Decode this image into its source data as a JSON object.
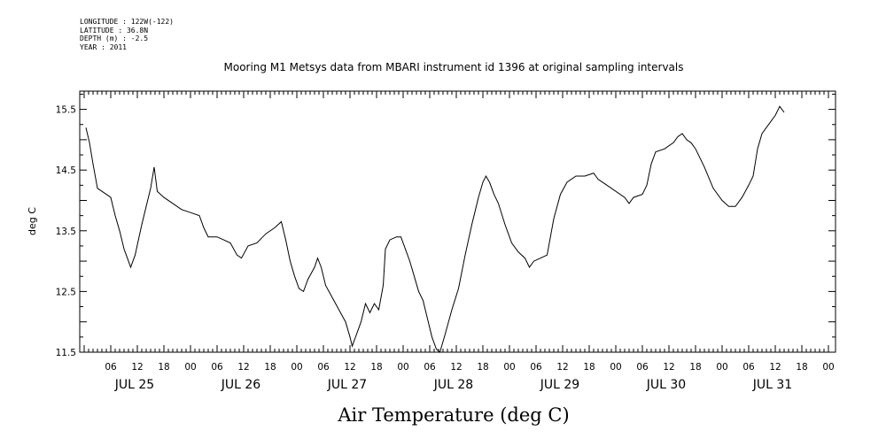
{
  "header": {
    "longitude": "LONGITUDE : 122W(-122)",
    "latitude": "LATITUDE : 36.8N",
    "depth": "DEPTH (m) : -2.5",
    "year": "YEAR : 2011"
  },
  "chart_data": {
    "type": "line",
    "title": "Mooring M1 Metsys data from MBARI instrument id 1396 at original sampling intervals",
    "xlabel": "Air Temperature (deg C)",
    "ylabel": "deg C",
    "ylim": [
      11.5,
      15.8
    ],
    "yticks": [
      "11.5",
      "12.5",
      "13.5",
      "14.5",
      "15.5"
    ],
    "xlim_hours": [
      0,
      168
    ],
    "hour_ticks": [
      "06",
      "12",
      "18",
      "00",
      "06",
      "12",
      "18",
      "00",
      "06",
      "12",
      "18",
      "00",
      "06",
      "12",
      "18",
      "00",
      "06",
      "12",
      "18",
      "00",
      "06",
      "12",
      "18",
      "00",
      "06",
      "12",
      "18",
      "00"
    ],
    "date_labels": [
      "JUL 25",
      "JUL 26",
      "JUL 27",
      "JUL 28",
      "JUL 29",
      "JUL 30",
      "JUL 31"
    ],
    "grid": false,
    "series": [
      {
        "color": "#000000",
        "points": [
          [
            0.4,
            15.2
          ],
          [
            1.2,
            14.95
          ],
          [
            2,
            14.6
          ],
          [
            3,
            14.2
          ],
          [
            4,
            14.15
          ],
          [
            5,
            14.1
          ],
          [
            6,
            14.05
          ],
          [
            7,
            13.75
          ],
          [
            8,
            13.5
          ],
          [
            9,
            13.2
          ],
          [
            10,
            13.0
          ],
          [
            10.5,
            12.9
          ],
          [
            11.5,
            13.1
          ],
          [
            13,
            13.6
          ],
          [
            14,
            13.9
          ],
          [
            15,
            14.2
          ],
          [
            15.8,
            14.55
          ],
          [
            16.5,
            14.15
          ],
          [
            18,
            14.05
          ],
          [
            20,
            13.95
          ],
          [
            22,
            13.85
          ],
          [
            24,
            13.8
          ],
          [
            26,
            13.75
          ],
          [
            27,
            13.55
          ],
          [
            28,
            13.4
          ],
          [
            30,
            13.4
          ],
          [
            31.5,
            13.35
          ],
          [
            33,
            13.3
          ],
          [
            34.5,
            13.1
          ],
          [
            35.5,
            13.05
          ],
          [
            37,
            13.25
          ],
          [
            39,
            13.3
          ],
          [
            41,
            13.45
          ],
          [
            43,
            13.55
          ],
          [
            44.5,
            13.65
          ],
          [
            45.5,
            13.35
          ],
          [
            46.5,
            13.0
          ],
          [
            47.5,
            12.75
          ],
          [
            48.5,
            12.55
          ],
          [
            49.5,
            12.5
          ],
          [
            50.5,
            12.7
          ],
          [
            52,
            12.9
          ],
          [
            52.7,
            13.05
          ],
          [
            53.5,
            12.9
          ],
          [
            54.5,
            12.6
          ],
          [
            56,
            12.4
          ],
          [
            57.5,
            12.2
          ],
          [
            59,
            12.0
          ],
          [
            60,
            11.75
          ],
          [
            60.5,
            11.6
          ],
          [
            61.5,
            11.8
          ],
          [
            62.5,
            12.0
          ],
          [
            63.5,
            12.3
          ],
          [
            64.5,
            12.15
          ],
          [
            65.5,
            12.3
          ],
          [
            66.5,
            12.2
          ],
          [
            67.5,
            12.6
          ],
          [
            68,
            13.2
          ],
          [
            69,
            13.35
          ],
          [
            70.5,
            13.4
          ],
          [
            71.5,
            13.4
          ],
          [
            72.5,
            13.2
          ],
          [
            73.5,
            13.0
          ],
          [
            74.5,
            12.75
          ],
          [
            75.5,
            12.5
          ],
          [
            76.5,
            12.35
          ],
          [
            77.5,
            12.05
          ],
          [
            78.5,
            11.75
          ],
          [
            79.5,
            11.55
          ],
          [
            80.3,
            11.5
          ],
          [
            81.5,
            11.8
          ],
          [
            83,
            12.2
          ],
          [
            84.5,
            12.55
          ],
          [
            86,
            13.1
          ],
          [
            87.5,
            13.6
          ],
          [
            89,
            14.05
          ],
          [
            90,
            14.3
          ],
          [
            90.7,
            14.4
          ],
          [
            91.5,
            14.3
          ],
          [
            92.5,
            14.1
          ],
          [
            93.5,
            13.95
          ],
          [
            95,
            13.6
          ],
          [
            96.5,
            13.3
          ],
          [
            98,
            13.15
          ],
          [
            99.5,
            13.05
          ],
          [
            100.5,
            12.9
          ],
          [
            101.5,
            13.0
          ],
          [
            103,
            13.05
          ],
          [
            104.5,
            13.1
          ],
          [
            106,
            13.7
          ],
          [
            107.5,
            14.1
          ],
          [
            109,
            14.3
          ],
          [
            111,
            14.4
          ],
          [
            113,
            14.4
          ],
          [
            115,
            14.45
          ],
          [
            116,
            14.35
          ],
          [
            117,
            14.3
          ],
          [
            118,
            14.25
          ],
          [
            122,
            14.05
          ],
          [
            123,
            13.95
          ],
          [
            124,
            14.05
          ],
          [
            126,
            14.1
          ],
          [
            127,
            14.25
          ],
          [
            128,
            14.6
          ],
          [
            129,
            14.8
          ],
          [
            131,
            14.85
          ],
          [
            133,
            14.95
          ],
          [
            134,
            15.05
          ],
          [
            135,
            15.1
          ],
          [
            136,
            15.0
          ],
          [
            137,
            14.95
          ],
          [
            138,
            14.85
          ],
          [
            140,
            14.55
          ],
          [
            142,
            14.2
          ],
          [
            144,
            14.0
          ],
          [
            145.5,
            13.9
          ],
          [
            147,
            13.9
          ],
          [
            148.5,
            14.05
          ],
          [
            150,
            14.25
          ],
          [
            151,
            14.4
          ],
          [
            152,
            14.85
          ],
          [
            153,
            15.1
          ],
          [
            154.5,
            15.25
          ],
          [
            156,
            15.4
          ],
          [
            157,
            15.55
          ],
          [
            158,
            15.45
          ]
        ]
      }
    ]
  }
}
